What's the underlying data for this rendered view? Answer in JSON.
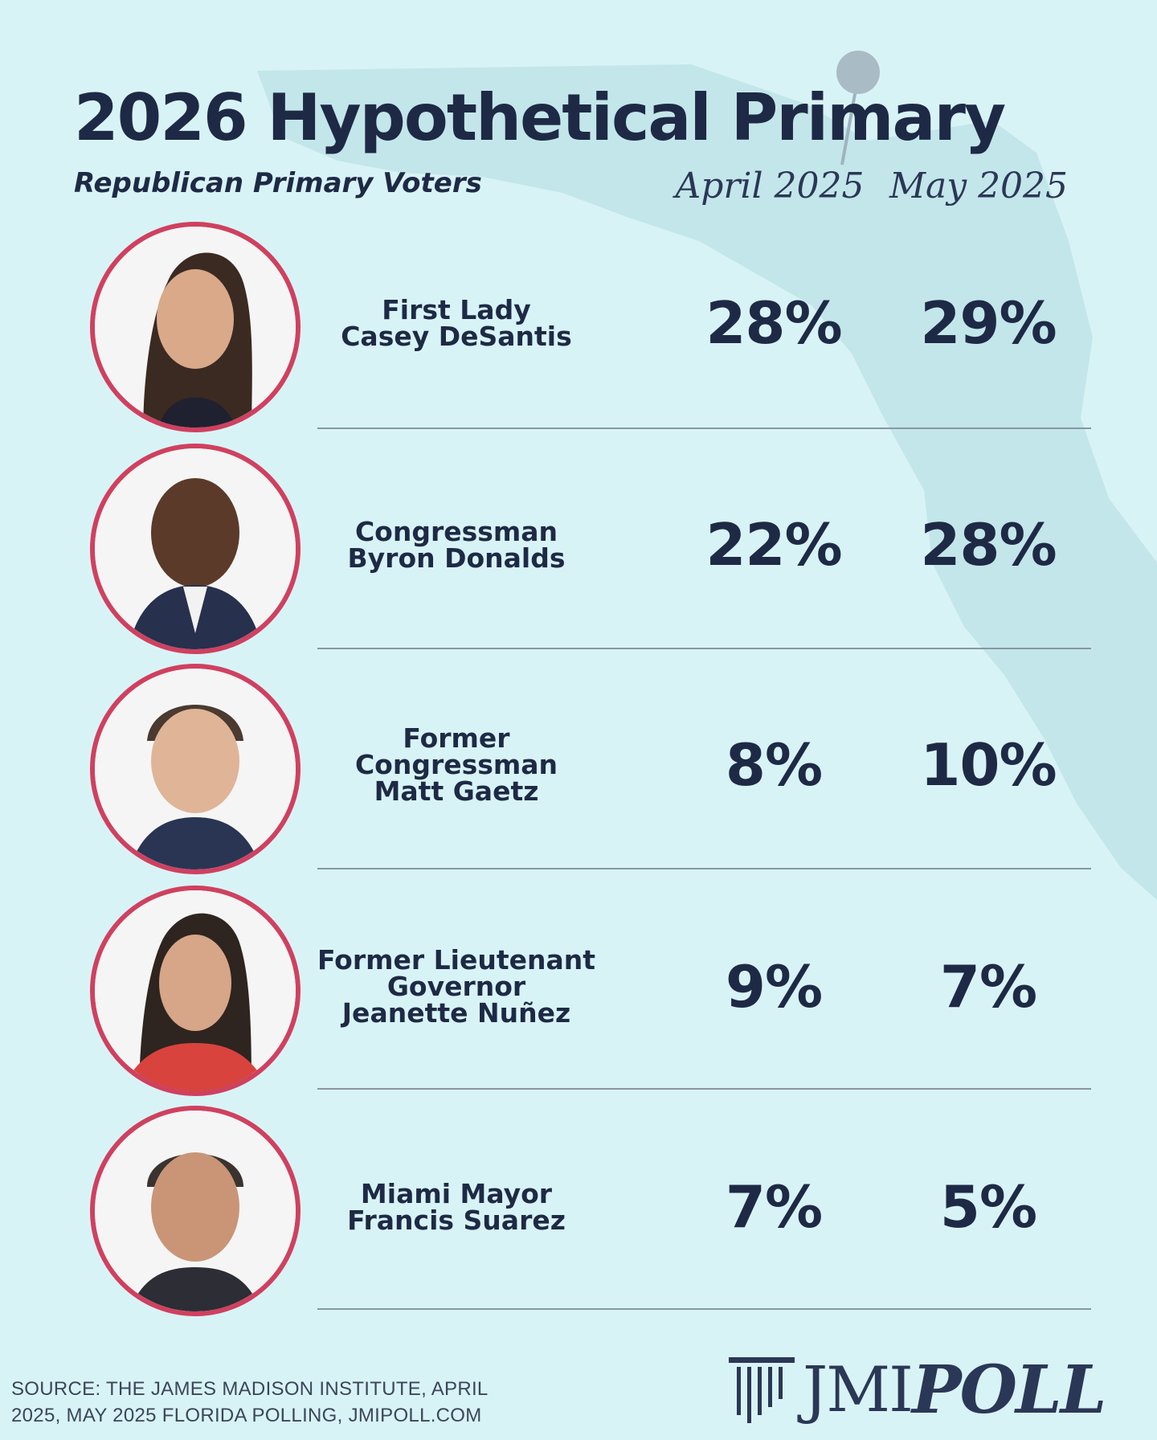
{
  "header": {
    "title": "2026 Hypothetical Primary",
    "subtitle": "Republican Primary Voters"
  },
  "chart_data": {
    "type": "table",
    "title": "2026 Hypothetical Primary",
    "subtitle": "Republican Primary Voters",
    "columns": [
      "April 2025",
      "May 2025"
    ],
    "rows": [
      {
        "name": "First Lady\nCasey DeSantis",
        "april": "28%",
        "may": "29%"
      },
      {
        "name": "Congressman\nByron Donalds",
        "april": "22%",
        "may": "28%"
      },
      {
        "name": "Former\nCongressman\nMatt Gaetz",
        "april": "8%",
        "may": "10%"
      },
      {
        "name": "Former Lieutenant\nGovernor\nJeanette Nuñez",
        "april": "9%",
        "may": "7%"
      },
      {
        "name": "Miami Mayor\nFrancis Suarez",
        "april": "7%",
        "may": "5%"
      }
    ],
    "series": [
      {
        "name": "April 2025",
        "values": [
          28,
          22,
          8,
          9,
          7
        ]
      },
      {
        "name": "May 2025",
        "values": [
          29,
          28,
          10,
          7,
          5
        ]
      }
    ]
  },
  "footer": {
    "source": "SOURCE: THE JAMES MADISON INSTITUTE, APRIL 2025, MAY 2025 FLORIDA POLLING, JMIPOLL.COM",
    "logo_part1": "JMI",
    "logo_part2": "POLL"
  },
  "colors": {
    "background": "#d8f3f6",
    "text": "#1e2a45",
    "ring": "#d0405f",
    "map": "#c3e6ea"
  },
  "icons": [
    "portrait-photo",
    "map-pin-icon",
    "column-logo-icon"
  ]
}
